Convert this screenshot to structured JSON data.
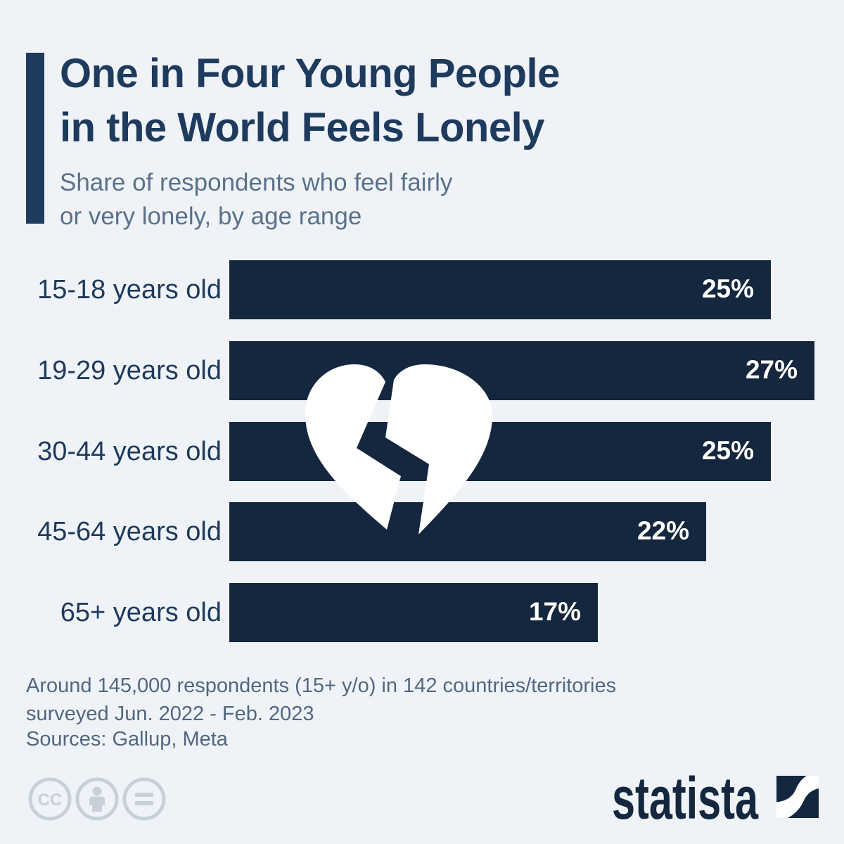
{
  "colors": {
    "background": "#eff3f8",
    "bar": "#14273e",
    "title_navy": "#1e3a5c",
    "subtitle_gray_blue": "#5a7189",
    "footer_gray_blue": "#52677f",
    "value_label": "#ffffff",
    "license_icon_gray": "#c7d0d9",
    "heart": "#ffffff"
  },
  "header": {
    "title_line1": "One in Four Young People",
    "title_line2": "in the World Feels Lonely",
    "subtitle_line1": "Share of respondents who feel fairly",
    "subtitle_line2": "or very lonely, by age range"
  },
  "chart_data": {
    "type": "bar",
    "orientation": "horizontal",
    "title": "One in Four Young People in the World Feels Lonely",
    "subtitle": "Share of respondents who feel fairly or very lonely, by age range",
    "categories": [
      "15-18 years old",
      "19-29 years old",
      "30-44 years old",
      "45-64 years old",
      "65+ years old"
    ],
    "values": [
      25,
      27,
      25,
      22,
      17
    ],
    "value_labels": [
      "25%",
      "27%",
      "25%",
      "22%",
      "17%"
    ],
    "unit": "percent",
    "xlim": [
      0,
      27
    ],
    "grid": false,
    "legend": false,
    "bar_color": "#14273e",
    "value_labels_inside_bar": true,
    "overlay_icon": "broken-heart-icon"
  },
  "footer": {
    "note_line1": "Around 145,000 respondents (15+ y/o) in 142 countries/territories",
    "note_line2": "surveyed Jun. 2022 - Feb. 2023",
    "sources": "Sources: Gallup, Meta"
  },
  "branding": {
    "logo_text": "statista",
    "license_icons": [
      "cc-icon",
      "attribution-person-icon",
      "no-derivatives-equals-icon"
    ]
  }
}
